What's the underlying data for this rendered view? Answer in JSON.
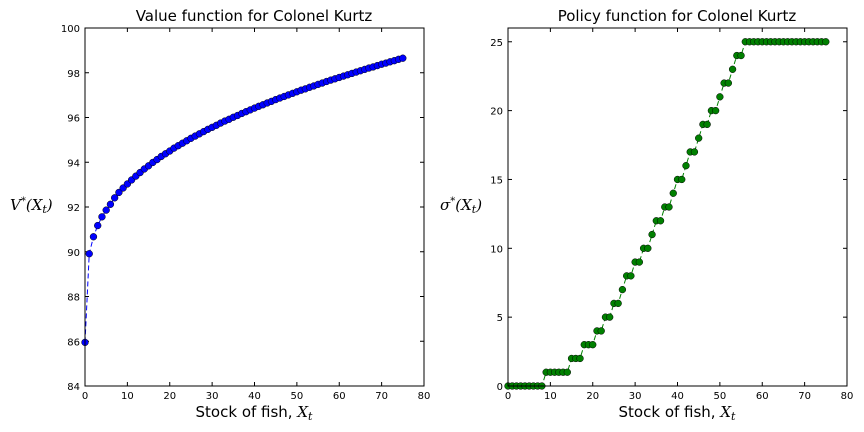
{
  "chart_data": [
    {
      "type": "line",
      "title": "Value function for Colonel Kurtz",
      "xlabel": "Stock of fish, X_t",
      "ylabel": "V*(X_t)",
      "xlim": [
        0,
        80
      ],
      "ylim": [
        84,
        100
      ],
      "xticks": [
        "0",
        "10",
        "20",
        "30",
        "40",
        "50",
        "60",
        "70",
        "80"
      ],
      "yticks": [
        "84",
        "86",
        "88",
        "90",
        "92",
        "94",
        "96",
        "98",
        "100"
      ],
      "line_style": "dashed",
      "marker": "circle",
      "color": "#0000ff",
      "x": [
        0,
        1,
        2,
        3,
        4,
        5,
        6,
        7,
        8,
        9,
        10,
        11,
        12,
        13,
        14,
        15,
        16,
        17,
        18,
        19,
        20,
        21,
        22,
        23,
        24,
        25,
        26,
        27,
        28,
        29,
        30,
        31,
        32,
        33,
        34,
        35,
        36,
        37,
        38,
        39,
        40,
        41,
        42,
        43,
        44,
        45,
        46,
        47,
        48,
        49,
        50,
        51,
        52,
        53,
        54,
        55,
        56,
        57,
        58,
        59,
        60,
        61,
        62,
        63,
        64,
        65,
        66,
        67,
        68,
        69,
        70,
        71,
        72,
        73,
        74,
        75
      ],
      "y": [
        85.95,
        89.91,
        90.67,
        91.17,
        91.56,
        91.86,
        92.12,
        92.41,
        92.65,
        92.85,
        93.03,
        93.21,
        93.38,
        93.54,
        93.7,
        93.84,
        93.99,
        94.12,
        94.26,
        94.38,
        94.5,
        94.63,
        94.74,
        94.85,
        94.96,
        95.07,
        95.17,
        95.27,
        95.37,
        95.47,
        95.56,
        95.65,
        95.75,
        95.84,
        95.92,
        96.01,
        96.09,
        96.18,
        96.26,
        96.34,
        96.42,
        96.5,
        96.57,
        96.65,
        96.72,
        96.8,
        96.87,
        96.94,
        97.01,
        97.08,
        97.15,
        97.22,
        97.28,
        97.35,
        97.41,
        97.48,
        97.54,
        97.61,
        97.67,
        97.73,
        97.79,
        97.85,
        97.91,
        97.97,
        98.03,
        98.09,
        98.15,
        98.21,
        98.26,
        98.32,
        98.38,
        98.43,
        98.49,
        98.54,
        98.6,
        98.65
      ]
    },
    {
      "type": "line",
      "title": "Policy function for Colonel Kurtz",
      "xlabel": "Stock of fish, X_t",
      "ylabel": "σ*(X_t)",
      "xlim": [
        0,
        80
      ],
      "ylim": [
        0,
        26
      ],
      "xticks": [
        "0",
        "10",
        "20",
        "30",
        "40",
        "50",
        "60",
        "70",
        "80"
      ],
      "yticks": [
        "0",
        "5",
        "10",
        "15",
        "20",
        "25"
      ],
      "line_style": "dashed",
      "marker": "circle",
      "color": "#008000",
      "x": [
        0,
        1,
        2,
        3,
        4,
        5,
        6,
        7,
        8,
        9,
        10,
        11,
        12,
        13,
        14,
        15,
        16,
        17,
        18,
        19,
        20,
        21,
        22,
        23,
        24,
        25,
        26,
        27,
        28,
        29,
        30,
        31,
        32,
        33,
        34,
        35,
        36,
        37,
        38,
        39,
        40,
        41,
        42,
        43,
        44,
        45,
        46,
        47,
        48,
        49,
        50,
        51,
        52,
        53,
        54,
        55,
        56,
        57,
        58,
        59,
        60,
        61,
        62,
        63,
        64,
        65,
        66,
        67,
        68,
        69,
        70,
        71,
        72,
        73,
        74,
        75
      ],
      "y": [
        0,
        0,
        0,
        0,
        0,
        0,
        0,
        0,
        0,
        1,
        1,
        1,
        1,
        1,
        1,
        2,
        2,
        2,
        3,
        3,
        3,
        4,
        4,
        5,
        5,
        6,
        6,
        7,
        8,
        8,
        9,
        9,
        10,
        10,
        11,
        12,
        12,
        13,
        13,
        14,
        15,
        15,
        16,
        17,
        17,
        18,
        19,
        19,
        20,
        20,
        21,
        22,
        22,
        23,
        24,
        24,
        25,
        25,
        25,
        25,
        25,
        25,
        25,
        25,
        25,
        25,
        25,
        25,
        25,
        25,
        25,
        25,
        25,
        25,
        25,
        25
      ]
    }
  ]
}
